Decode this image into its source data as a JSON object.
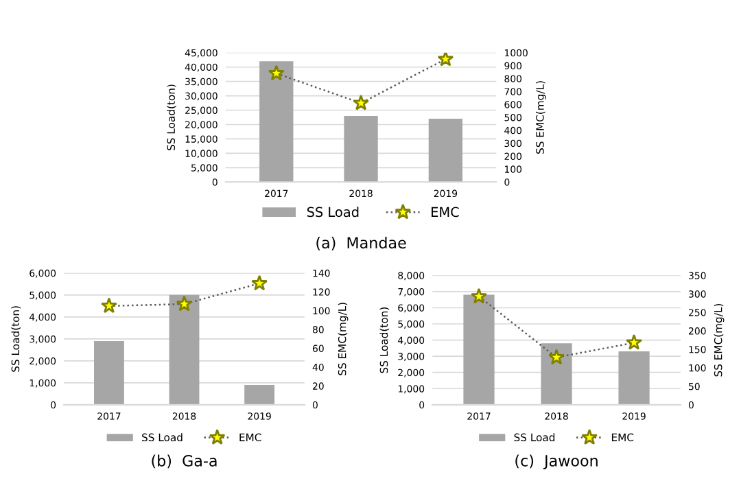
{
  "chart_data": [
    {
      "type": "bar",
      "title": "(a)  Mandae",
      "categories": [
        "2017",
        "2018",
        "2019"
      ],
      "ylabel": "SS Load(ton)",
      "y2label": "SS EMC(mg/L)",
      "ylim": [
        0,
        45000
      ],
      "yticks": [
        {
          "value": 0,
          "label": "0"
        },
        {
          "value": 5000,
          "label": "5,000"
        },
        {
          "value": 10000,
          "label": "10,000"
        },
        {
          "value": 15000,
          "label": "15,000"
        },
        {
          "value": 20000,
          "label": "20,000"
        },
        {
          "value": 25000,
          "label": "25,000"
        },
        {
          "value": 30000,
          "label": "30,000"
        },
        {
          "value": 35000,
          "label": "35,000"
        },
        {
          "value": 40000,
          "label": "40,000"
        },
        {
          "value": 45000,
          "label": "45,000"
        }
      ],
      "y2lim": [
        0,
        1000
      ],
      "y2ticks": [
        0,
        100,
        200,
        300,
        400,
        500,
        600,
        700,
        800,
        900,
        1000
      ],
      "grid": "y",
      "legend": "bottom",
      "marker": "star",
      "line_style": "dotted",
      "series": [
        {
          "name": "SS Load",
          "color": "#a6a6a6",
          "values": [
            42000,
            23000,
            22000
          ]
        },
        {
          "name": "EMC",
          "type": "line",
          "axis": "y2",
          "color": "#595959",
          "values": [
            840,
            610,
            950
          ]
        }
      ]
    },
    {
      "type": "bar",
      "title": "(b)  Ga-a",
      "categories": [
        "2017",
        "2018",
        "2019"
      ],
      "ylabel": "SS Load(ton)",
      "y2label": "SS EMC(mg/L)",
      "ylim": [
        0,
        6000
      ],
      "yticks": [
        {
          "value": 0,
          "label": "0"
        },
        {
          "value": 1000,
          "label": "1,000"
        },
        {
          "value": 2000,
          "label": "2,000"
        },
        {
          "value": 3000,
          "label": "3,000"
        },
        {
          "value": 4000,
          "label": "4,000"
        },
        {
          "value": 5000,
          "label": "5,000"
        },
        {
          "value": 6000,
          "label": "6,000"
        }
      ],
      "y2lim": [
        0,
        140
      ],
      "y2ticks": [
        0,
        20,
        40,
        60,
        80,
        100,
        120,
        140
      ],
      "grid": "y",
      "legend": "bottom",
      "marker": "star",
      "line_style": "dotted",
      "series": [
        {
          "name": "SS Load",
          "color": "#a6a6a6",
          "values": [
            2900,
            5000,
            900
          ]
        },
        {
          "name": "EMC",
          "type": "line",
          "axis": "y2",
          "color": "#595959",
          "values": [
            105,
            107,
            129
          ]
        }
      ]
    },
    {
      "type": "bar",
      "title": "(c)  Jawoon",
      "categories": [
        "2017",
        "2018",
        "2019"
      ],
      "ylabel": "SS Load(ton)",
      "y2label": "SS EMC(mg/L)",
      "ylim": [
        0,
        8000
      ],
      "yticks": [
        {
          "value": 0,
          "label": "0"
        },
        {
          "value": 1000,
          "label": "1,000"
        },
        {
          "value": 2000,
          "label": "2,000"
        },
        {
          "value": 3000,
          "label": "3,000"
        },
        {
          "value": 4000,
          "label": "4,000"
        },
        {
          "value": 5000,
          "label": "5,000"
        },
        {
          "value": 6000,
          "label": "6,000"
        },
        {
          "value": 7000,
          "label": "7,000"
        },
        {
          "value": 8000,
          "label": "8,000"
        }
      ],
      "y2lim": [
        0,
        350
      ],
      "y2ticks": [
        0,
        50,
        100,
        150,
        200,
        250,
        300,
        350
      ],
      "grid": "y",
      "legend": "bottom",
      "marker": "star",
      "line_style": "dotted",
      "series": [
        {
          "name": "SS Load",
          "color": "#a6a6a6",
          "values": [
            6800,
            3800,
            3300
          ]
        },
        {
          "name": "EMC",
          "type": "line",
          "axis": "y2",
          "color": "#595959",
          "values": [
            293,
            128,
            168
          ]
        }
      ]
    }
  ]
}
